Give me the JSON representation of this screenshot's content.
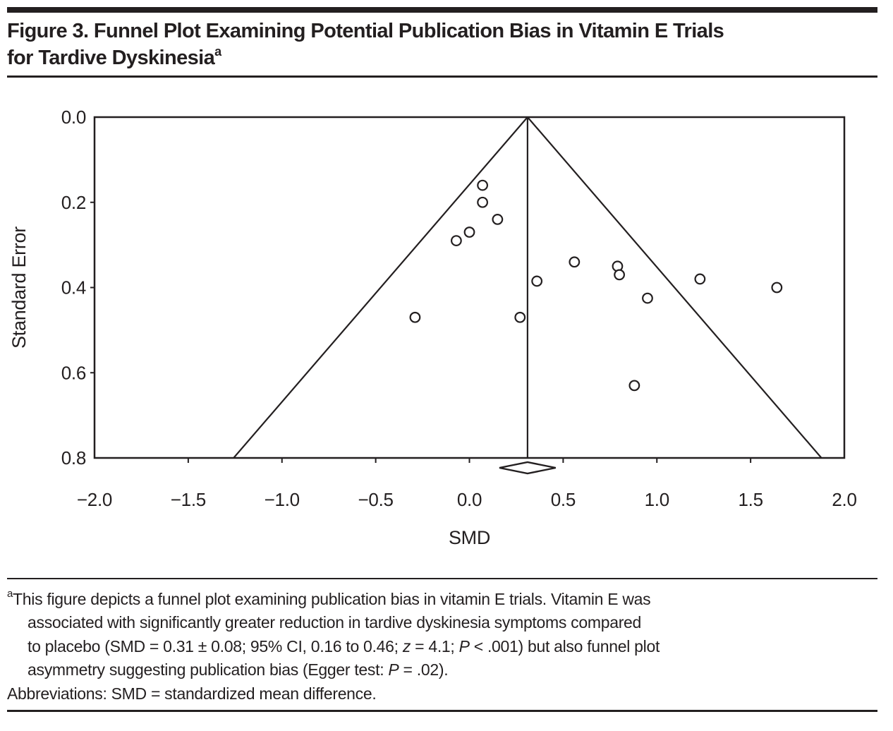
{
  "header": {
    "title_line1": "Figure 3. Funnel Plot Examining Potential Publication Bias in Vitamin E Trials",
    "title_line2": "for Tardive Dyskinesia",
    "title_superscript": "a"
  },
  "chart_data": {
    "type": "scatter",
    "title": "",
    "xlabel": "SMD",
    "ylabel": "Standard Error",
    "xlim": [
      -2.0,
      2.0
    ],
    "se_lim": [
      0.0,
      0.8
    ],
    "grid": false,
    "x_ticks": [
      {
        "label": "−2.0",
        "value": -2.0
      },
      {
        "label": "−1.5",
        "value": -1.5
      },
      {
        "label": "−1.0",
        "value": -1.0
      },
      {
        "label": "−0.5",
        "value": -0.5
      },
      {
        "label": "0.0",
        "value": 0.0
      },
      {
        "label": "0.5",
        "value": 0.5
      },
      {
        "label": "1.0",
        "value": 1.0
      },
      {
        "label": "1.5",
        "value": 1.5
      },
      {
        "label": "2.0",
        "value": 2.0
      }
    ],
    "y_ticks": [
      {
        "label": "0.0",
        "value": 0.0
      },
      {
        "label": "0.2",
        "value": 0.2
      },
      {
        "label": "0.4",
        "value": 0.4
      },
      {
        "label": "0.6",
        "value": 0.6
      },
      {
        "label": "0.8",
        "value": 0.8
      }
    ],
    "funnel": {
      "apex_smd": 0.31,
      "ci_multiplier": 1.96,
      "se_max": 0.8
    },
    "pooled": {
      "smd": 0.31,
      "ci_low": 0.16,
      "ci_high": 0.46
    },
    "points": [
      {
        "smd": 0.07,
        "se": 0.16
      },
      {
        "smd": 0.07,
        "se": 0.2
      },
      {
        "smd": 0.15,
        "se": 0.24
      },
      {
        "smd": 0.0,
        "se": 0.27
      },
      {
        "smd": -0.07,
        "se": 0.29
      },
      {
        "smd": 0.56,
        "se": 0.34
      },
      {
        "smd": 0.79,
        "se": 0.35
      },
      {
        "smd": 0.8,
        "se": 0.37
      },
      {
        "smd": 0.36,
        "se": 0.385
      },
      {
        "smd": 1.23,
        "se": 0.38
      },
      {
        "smd": 1.64,
        "se": 0.4
      },
      {
        "smd": 0.95,
        "se": 0.425
      },
      {
        "smd": -0.29,
        "se": 0.47
      },
      {
        "smd": 0.27,
        "se": 0.47
      },
      {
        "smd": 0.88,
        "se": 0.63
      }
    ]
  },
  "footnote": {
    "marker": "a",
    "line1": "This figure depicts a funnel plot examining publication bias in vitamin E trials. Vitamin E was",
    "line2": "associated with significantly greater reduction in tardive dyskinesia symptoms compared",
    "line3": {
      "pre": "to placebo (SMD = 0.31 ± 0.08; 95% CI, 0.16 to 0.46; ",
      "z": "z",
      "mid": " = 4.1; ",
      "p": "P",
      "post": " < .001) but also funnel plot"
    },
    "line4": {
      "pre": "asymmetry suggesting publication bias (Egger test: ",
      "p": "P",
      "post": " = .02)."
    },
    "abbreviations": "Abbreviations: SMD = standardized mean difference."
  },
  "colors": {
    "ink": "#231f20",
    "point_fill": "#ffffff"
  }
}
